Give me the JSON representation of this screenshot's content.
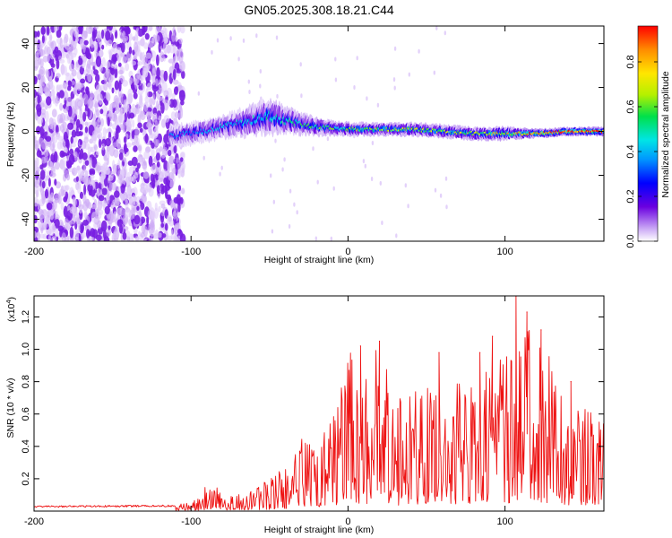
{
  "title": "GN05.2025.308.18.21.C44",
  "chart_data": [
    {
      "type": "heatmap",
      "title": "GN05.2025.308.18.21.C44",
      "xlabel": "Height of straight line (km)",
      "ylabel": "Frequency (Hz)",
      "xlim": [
        -200,
        163
      ],
      "ylim": [
        -50,
        48
      ],
      "x_ticks": [
        -200,
        -100,
        0,
        100
      ],
      "y_ticks": [
        -40,
        -20,
        0,
        20,
        40
      ],
      "colorbar": {
        "label": "Normalized spectral amplitude",
        "range": [
          0,
          0.96
        ],
        "ticks": [
          "0.0",
          "0.2",
          "0.4",
          "0.6",
          "0.8"
        ],
        "tick_values": [
          0.0,
          0.2,
          0.4,
          0.6,
          0.8
        ]
      },
      "noise_region_km": [
        -200,
        -105
      ],
      "signal_band": {
        "x": [
          -112,
          -100,
          -80,
          -60,
          -50,
          -40,
          -20,
          0,
          20,
          40,
          60,
          80,
          100,
          120,
          140,
          163
        ],
        "center_hz": [
          -2,
          -1,
          2,
          5,
          7,
          5,
          2,
          1,
          1,
          1,
          0,
          -1,
          -1,
          -1,
          0,
          0
        ],
        "half_width_hz": [
          5,
          5,
          5,
          7,
          8,
          6,
          4,
          3,
          3,
          3,
          3,
          3,
          3,
          2,
          2,
          2
        ],
        "amplitude": [
          0.3,
          0.35,
          0.38,
          0.42,
          0.45,
          0.45,
          0.5,
          0.55,
          0.58,
          0.62,
          0.6,
          0.62,
          0.68,
          0.8,
          0.9,
          0.95
        ]
      }
    },
    {
      "type": "line",
      "xlabel": "Height of straight line (km)",
      "ylabel": "SNR (10 * v/v)",
      "y_multiplier": "(x10^4)",
      "y_multiplier_base": "(x10",
      "y_multiplier_exp": "4",
      "y_multiplier_close": ")",
      "xlim": [
        -200,
        163
      ],
      "ylim": [
        0,
        1.33
      ],
      "x_ticks": [
        -200,
        -100,
        0,
        100
      ],
      "y_ticks": [
        0.2,
        0.4,
        0.6,
        0.8,
        1.0,
        1.2
      ],
      "y_tick_labels": [
        "0.2",
        "0.4",
        "0.6",
        "0.8",
        "1.0",
        "1.2"
      ],
      "color": "#ee1111",
      "series": [
        {
          "name": "SNR",
          "envelope_x": [
            -200,
            -110,
            -100,
            -90,
            -80,
            -70,
            -60,
            -50,
            -40,
            -30,
            -20,
            -10,
            0,
            10,
            20,
            30,
            40,
            50,
            60,
            70,
            80,
            90,
            100,
            105,
            110,
            120,
            130,
            140,
            150,
            155,
            163
          ],
          "envelope_y": [
            0.03,
            0.035,
            0.06,
            0.16,
            0.15,
            0.12,
            0.15,
            0.2,
            0.3,
            0.48,
            0.52,
            0.55,
            1.02,
            0.9,
            1.05,
            0.7,
            0.75,
            0.85,
            0.95,
            0.85,
            0.88,
            0.9,
            0.95,
            1.05,
            1.33,
            1.05,
            0.95,
            0.75,
            0.8,
            0.65,
            0.55
          ],
          "peaks": [
            {
              "x": 8,
              "y": 1.02
            },
            {
              "x": 20,
              "y": 1.05
            },
            {
              "x": 58,
              "y": 0.98
            },
            {
              "x": 84,
              "y": 0.98
            },
            {
              "x": 92,
              "y": 1.08
            },
            {
              "x": 107,
              "y": 1.33
            },
            {
              "x": 114,
              "y": 1.23
            },
            {
              "x": 123,
              "y": 1.12
            },
            {
              "x": 142,
              "y": 0.8
            }
          ]
        }
      ]
    }
  ]
}
